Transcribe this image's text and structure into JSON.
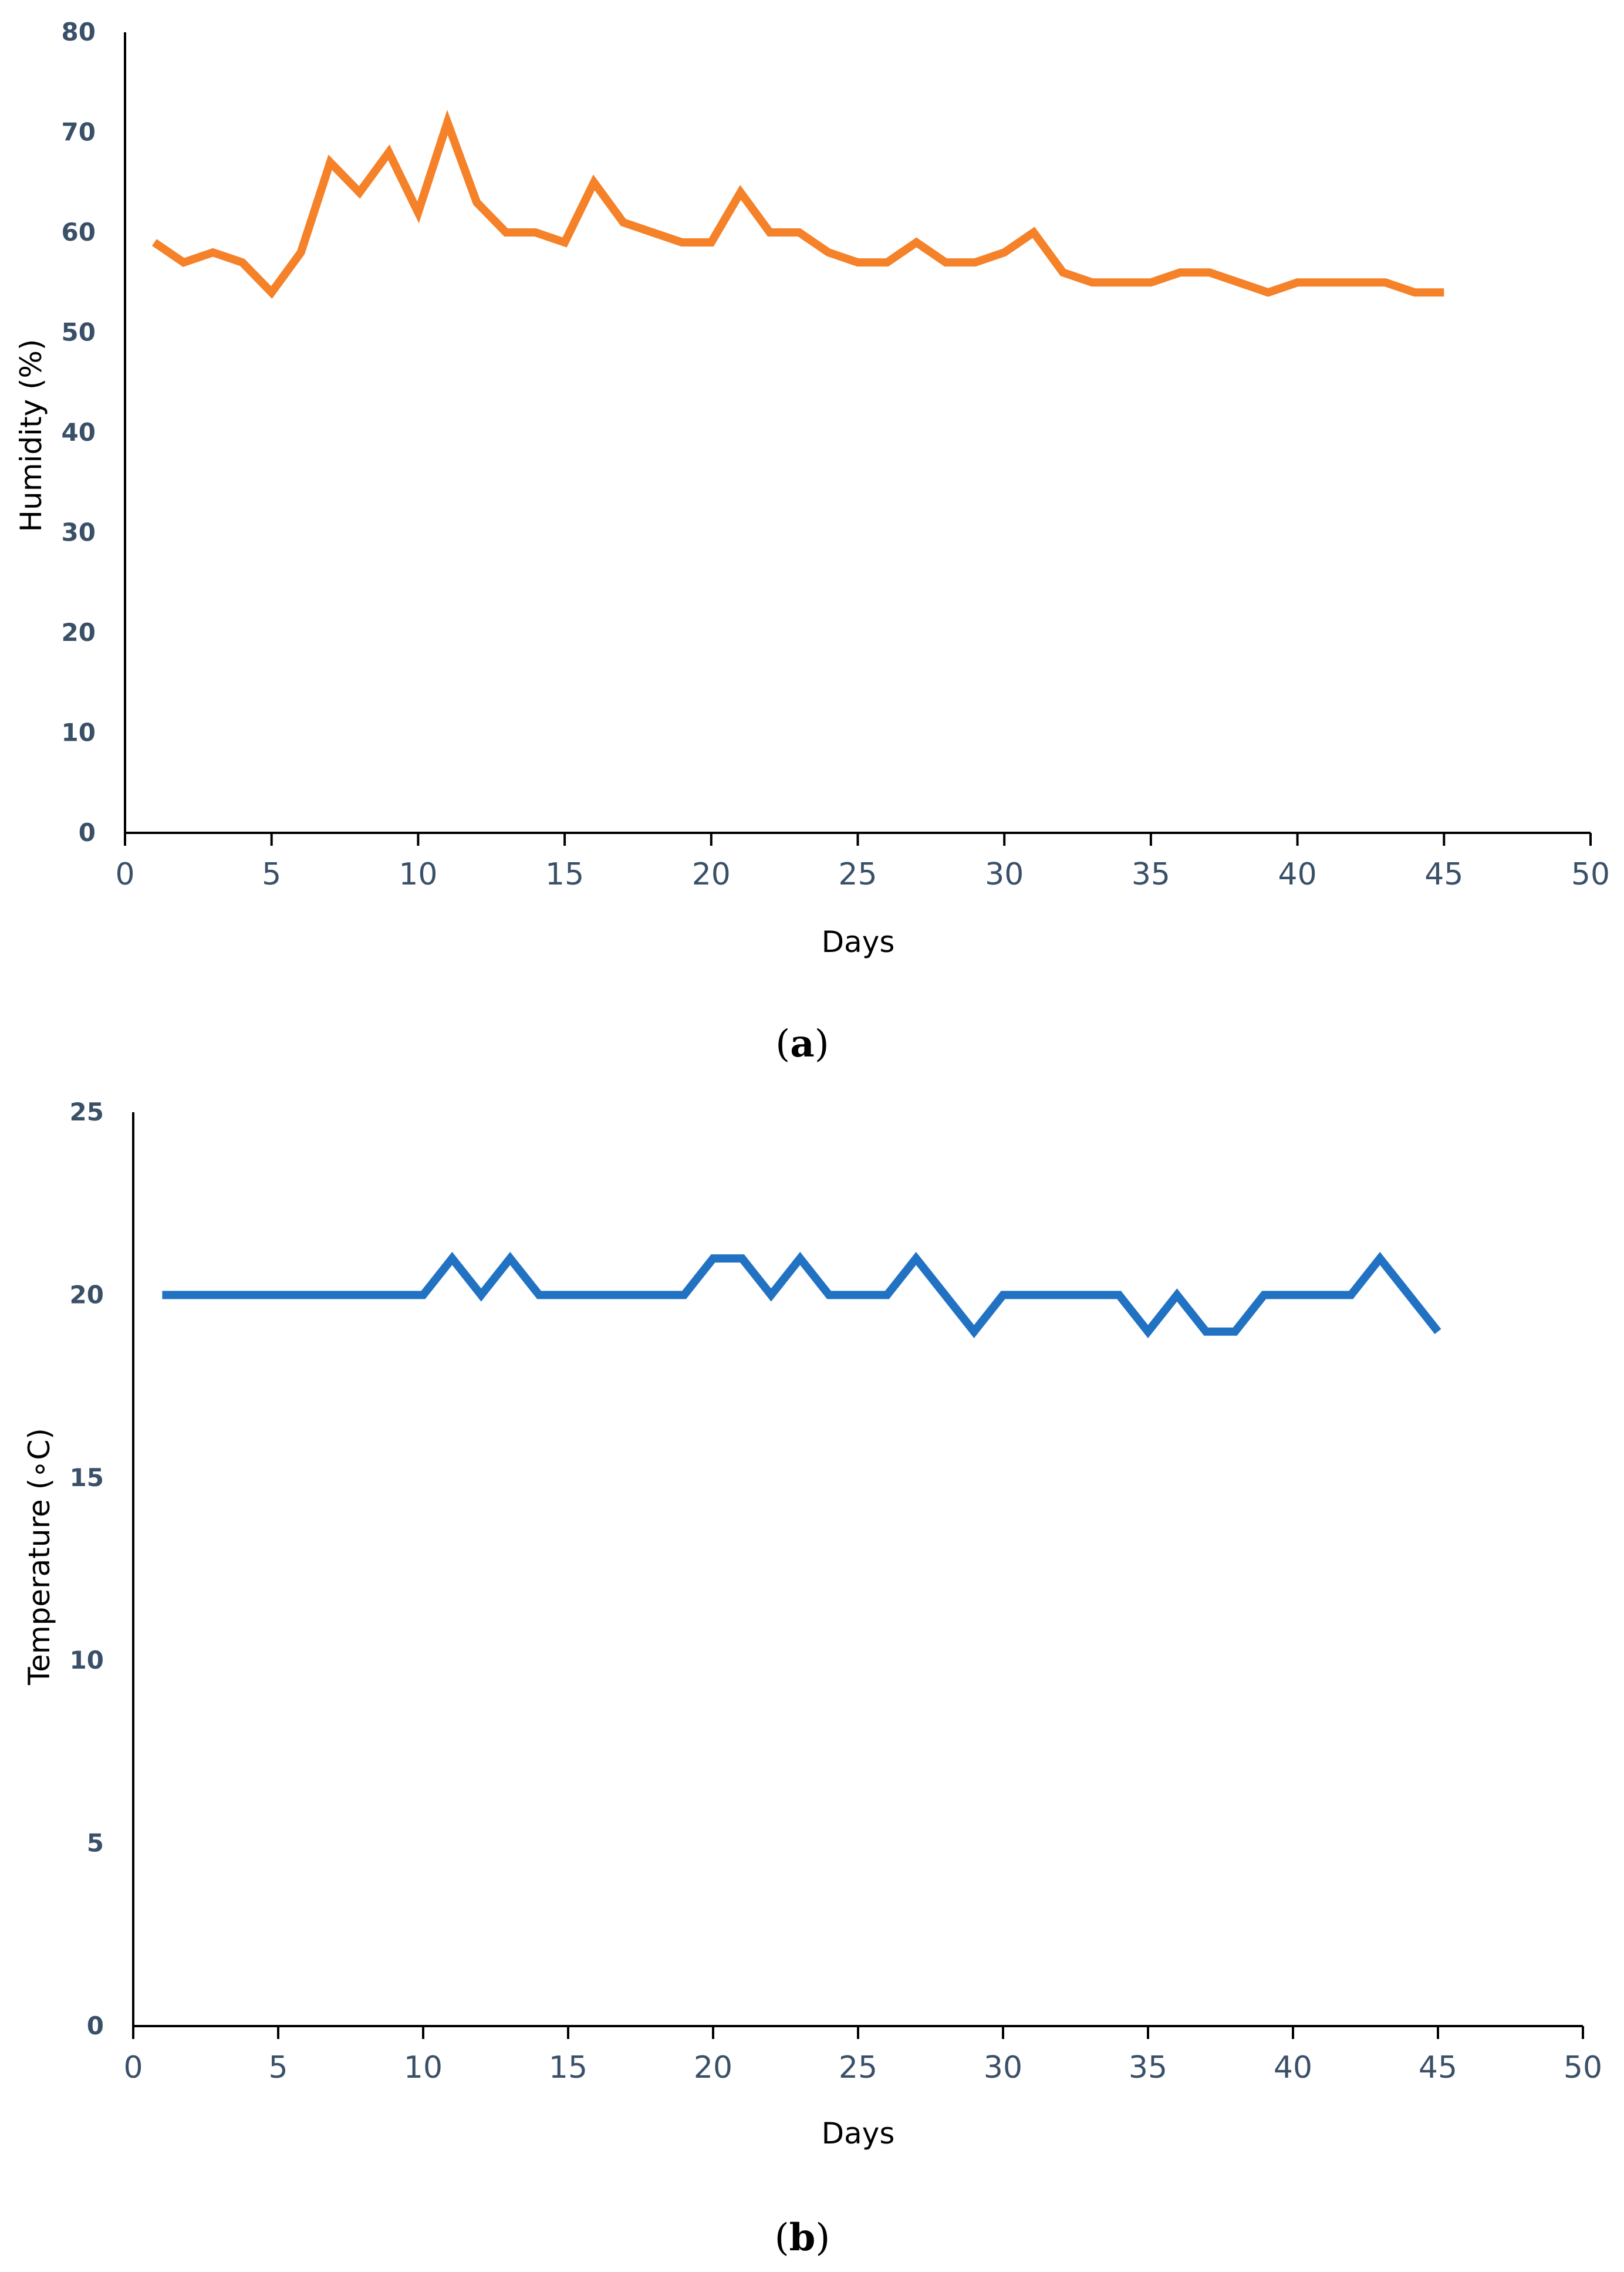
{
  "figure": {
    "panel_a_label": {
      "open": "(",
      "letter": "a",
      "close": ")"
    },
    "panel_b_label": {
      "open": "(",
      "letter": "b",
      "close": ")"
    }
  },
  "colors": {
    "humidity_line": "#F58129",
    "temperature_line": "#2272C3",
    "tick_label": "#3A5068",
    "axis": "#000000"
  },
  "chart_data": [
    {
      "type": "line",
      "xlabel": "Days",
      "ylabel": "Humidity (%)",
      "xlim": [
        0,
        50
      ],
      "ylim": [
        0,
        80
      ],
      "xticks": [
        "0",
        "5",
        "10",
        "15",
        "20",
        "25",
        "30",
        "35",
        "40",
        "45",
        "50"
      ],
      "yticks": [
        "0",
        "10",
        "20",
        "30",
        "40",
        "50",
        "60",
        "70",
        "80"
      ],
      "grid": false,
      "legend": "none",
      "series": [
        {
          "x": [
            1,
            2,
            3,
            4,
            5,
            6,
            7,
            8,
            9,
            10,
            11,
            12,
            13,
            14,
            15,
            16,
            17,
            18,
            19,
            20,
            21,
            22,
            23,
            24,
            25,
            26,
            27,
            28,
            29,
            30,
            31,
            32,
            33,
            34,
            35,
            36,
            37,
            38,
            39,
            40,
            41,
            42,
            43,
            44,
            45
          ],
          "values": [
            59,
            57,
            58,
            57,
            54,
            58,
            67,
            64,
            68,
            62,
            71,
            63,
            60,
            60,
            59,
            65,
            61,
            60,
            59,
            59,
            64,
            60,
            60,
            58,
            57,
            57,
            59,
            57,
            57,
            58,
            60,
            56,
            55,
            55,
            55,
            56,
            56,
            55,
            54,
            55,
            55,
            55,
            55,
            54,
            54
          ]
        }
      ]
    },
    {
      "type": "line",
      "xlabel": "Days",
      "ylabel": "Temperature  (∘C)",
      "xlim": [
        0,
        50
      ],
      "ylim": [
        0,
        25
      ],
      "xticks": [
        "0",
        "5",
        "10",
        "15",
        "20",
        "25",
        "30",
        "35",
        "40",
        "45",
        "50"
      ],
      "yticks": [
        "0",
        "5",
        "10",
        "15",
        "20",
        "25"
      ],
      "grid": false,
      "legend": "none",
      "series": [
        {
          "x": [
            1,
            2,
            3,
            4,
            5,
            6,
            7,
            8,
            9,
            10,
            11,
            12,
            13,
            14,
            15,
            16,
            17,
            18,
            19,
            20,
            21,
            22,
            23,
            24,
            25,
            26,
            27,
            28,
            29,
            30,
            31,
            32,
            33,
            34,
            35,
            36,
            37,
            38,
            39,
            40,
            41,
            42,
            43,
            44,
            45
          ],
          "values": [
            20,
            20,
            20,
            20,
            20,
            20,
            20,
            20,
            20,
            20,
            21,
            20,
            21,
            20,
            20,
            20,
            20,
            20,
            20,
            21,
            21,
            20,
            21,
            20,
            20,
            20,
            21,
            20,
            19,
            20,
            20,
            20,
            20,
            20,
            19,
            20,
            19,
            19,
            20,
            20,
            20,
            20,
            21,
            20,
            19
          ]
        }
      ]
    }
  ]
}
